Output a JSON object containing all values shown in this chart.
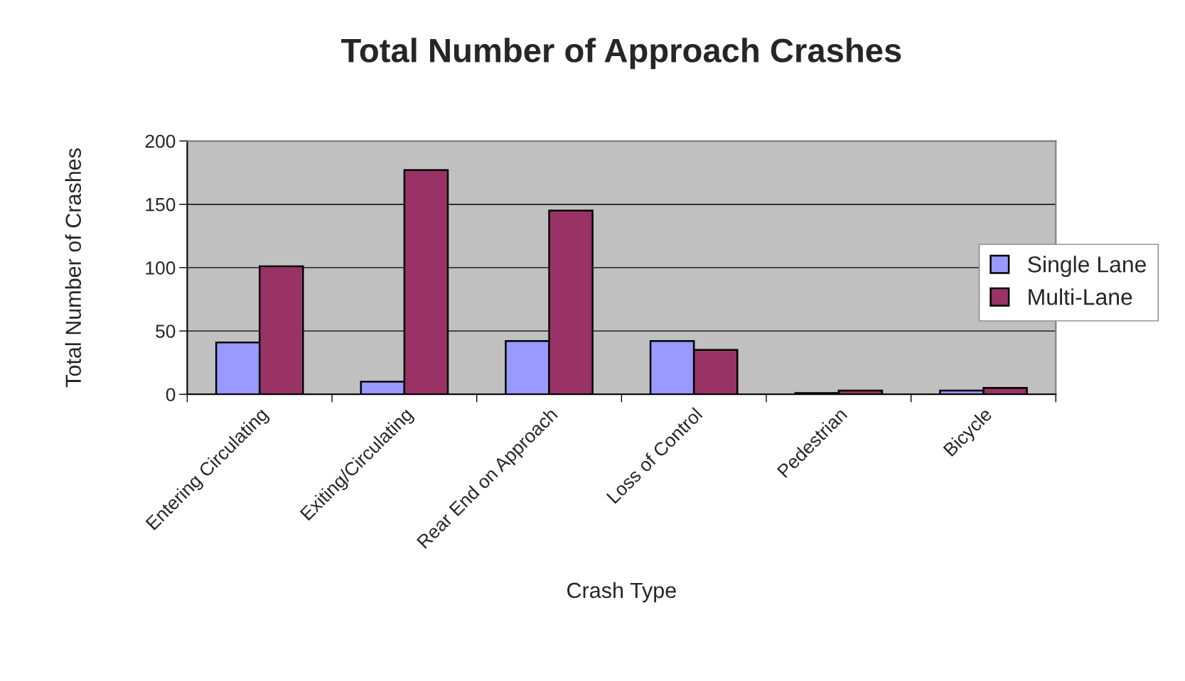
{
  "chart_data": {
    "type": "bar",
    "title": "Total Number of Approach Crashes",
    "xlabel": "Crash Type",
    "ylabel": "Total Number of Crashes",
    "categories": [
      "Entering Circulating",
      "Exiting/Circulating",
      "Rear End on Approach",
      "Loss of Control",
      "Pedestrian",
      "Bicycle"
    ],
    "series": [
      {
        "name": "Single Lane",
        "color": "#9999ff",
        "values": [
          41,
          10,
          42,
          42,
          1,
          3
        ]
      },
      {
        "name": "Multi-Lane",
        "color": "#993366",
        "values": [
          101,
          177,
          145,
          35,
          3,
          5
        ]
      }
    ],
    "ylim": [
      0,
      200
    ],
    "yticks": [
      0,
      50,
      100,
      150,
      200
    ],
    "grid": "y",
    "legend": "right"
  }
}
